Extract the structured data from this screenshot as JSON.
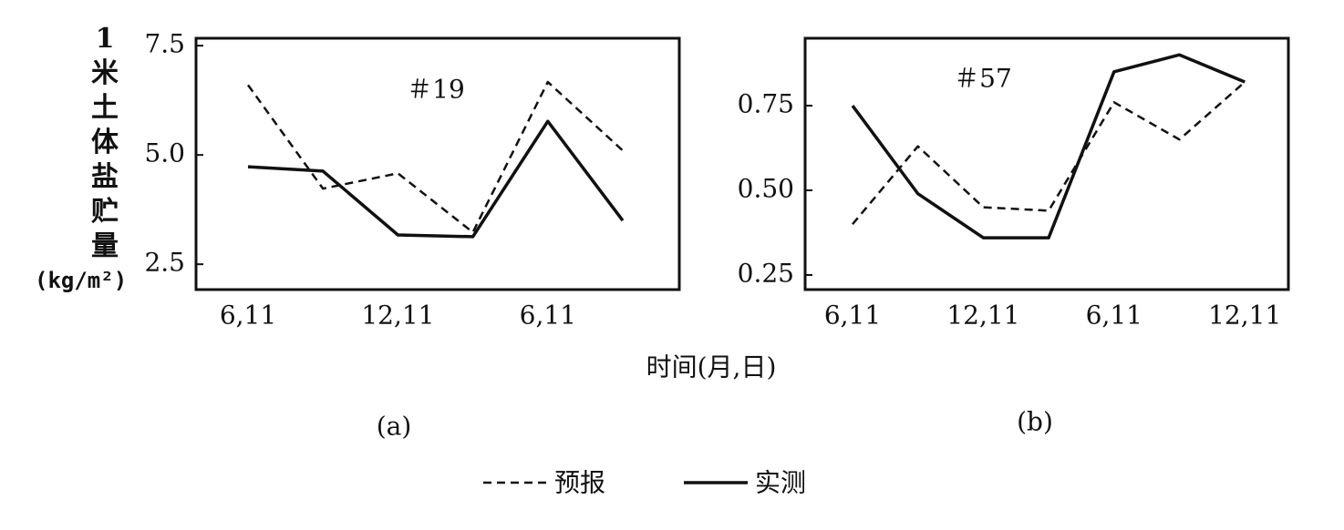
{
  "chart_data": [
    {
      "type": "line",
      "subtitle": "(a)",
      "annotation": "＃19",
      "y_label": "1米土体盐贮量",
      "y_label_unit": "(kg/m²)",
      "x_label": "时间(月,日)",
      "categories": [
        "6,11",
        null,
        "12,11",
        null,
        "6,11",
        null
      ],
      "series": [
        {
          "name": "预报",
          "color": "#111111",
          "line_style": "dashed",
          "values": [
            6.6,
            4.23,
            4.58,
            3.23,
            6.67,
            5.1
          ]
        },
        {
          "name": "实测",
          "color": "#111111",
          "line_style": "solid",
          "values": [
            4.73,
            4.63,
            3.17,
            3.13,
            5.77,
            3.5
          ]
        }
      ],
      "ylim": [
        1.92,
        7.67
      ],
      "yticks": [
        2.5,
        {
          "value": 5,
          "label": "5.0"
        },
        7.5
      ]
    },
    {
      "type": "line",
      "subtitle": "(b)",
      "annotation": "＃57",
      "categories": [
        "6,11",
        null,
        "12,11",
        null,
        "6,11",
        null,
        "12,11"
      ],
      "series": [
        {
          "color": "#111111",
          "line_style": "dashed",
          "values": [
            0.4,
            0.63,
            0.45,
            0.44,
            0.76,
            0.65,
            0.82
          ]
        },
        {
          "color": "#111111",
          "line_style": "solid",
          "values": [
            0.75,
            0.49,
            0.36,
            0.36,
            0.85,
            0.9,
            0.82
          ]
        }
      ],
      "ylim": [
        0.207,
        0.949
      ],
      "yticks": [
        0.25,
        {
          "value": 0.5,
          "label": "0.50"
        },
        0.75
      ]
    }
  ]
}
